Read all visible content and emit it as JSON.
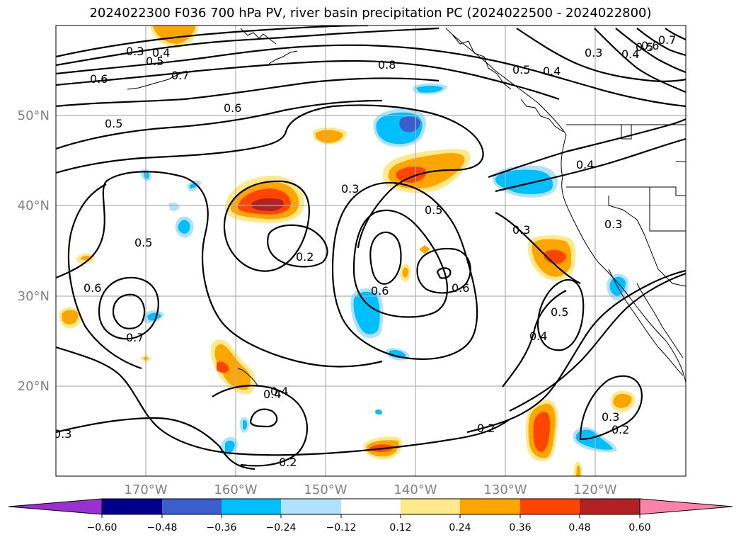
{
  "title": "2024022300 F036 700 hPa PV, river basin precipitation PC (2024022500 - 2024022800)",
  "map": {
    "lon_range": [
      -180,
      -110
    ],
    "lat_range": [
      10,
      60
    ],
    "lat_ticks": [
      "20°N",
      "30°N",
      "40°N",
      "50°N"
    ],
    "lon_ticks": [
      "170°W",
      "160°W",
      "150°W",
      "140°W",
      "130°W",
      "120°W"
    ],
    "gridlines": true,
    "contour_labels": [
      "0.3",
      "0.4",
      "0.5",
      "0.7",
      "0.6",
      "0.8",
      "0.5",
      "0.4",
      "0.3",
      "0.4",
      "0.5",
      "0.6",
      "0.7",
      "0.6",
      "0.5",
      "0.4",
      "0.3",
      "0.5",
      "0.3",
      "0.5",
      "0.2",
      "0.6",
      "0.6",
      "0.3",
      "0.4",
      "0.5",
      "0.4",
      "0.6",
      "0.7",
      "0.4",
      "0.3",
      "0.2",
      "0.2",
      "0.3",
      "0.2"
    ]
  },
  "colorbar": {
    "ticks": [
      "−0.60",
      "−0.48",
      "−0.36",
      "−0.24",
      "−0.12",
      "0.12",
      "0.24",
      "0.36",
      "0.48",
      "0.60"
    ],
    "colors": [
      "#9b30d0",
      "#00008b",
      "#3a5fcd",
      "#00bfff",
      "#b0e2ff",
      "#ffffff",
      "#ffe98b",
      "#ffa500",
      "#ff4500",
      "#b22222",
      "#ff82ab",
      "#ff82ab"
    ]
  },
  "colors": {
    "pos_light": "#ffe98b",
    "pos_orange": "#ffa500",
    "pos_red": "#ff4500",
    "pos_dark": "#b22222",
    "neg_light": "#b0e2ff",
    "neg_cyan": "#00bfff",
    "neg_blue": "#3a5fcd",
    "gridline": "#b0b0b0"
  }
}
